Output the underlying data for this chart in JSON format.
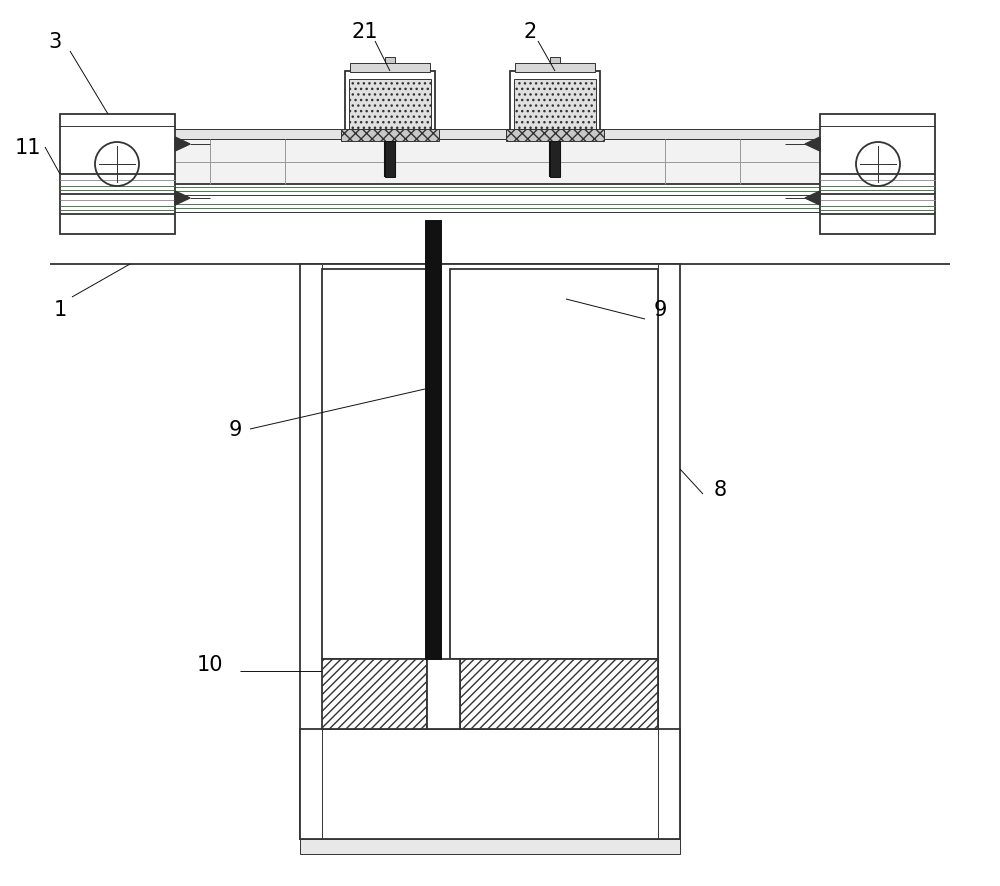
{
  "bg_color": "#ffffff",
  "line_color": "#333333",
  "dark_line": "#111111",
  "gray_line": "#999999",
  "green_line": "#4a7a4a",
  "label_fontsize": 15,
  "figsize": [
    10.0,
    8.87
  ],
  "dpi": 100
}
